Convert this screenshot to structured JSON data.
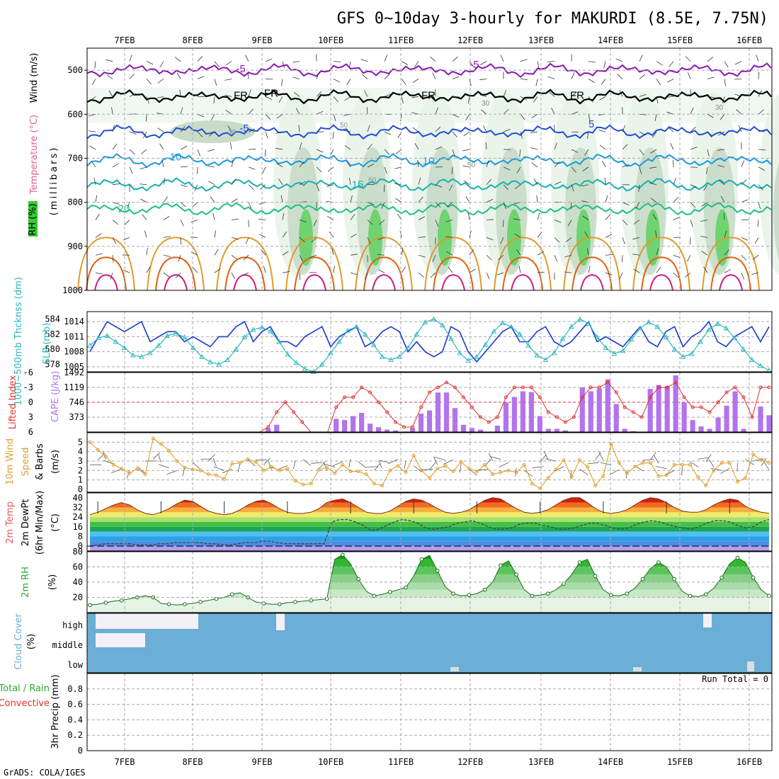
{
  "title": "GFS 0~10day 3-hourly for MAKURDI (8.5E, 7.75N)",
  "credit": "GrADS: COLA/IGES",
  "run_total": "Run Total = 0",
  "colors": {
    "purple": "#8a16b4",
    "black": "#000000",
    "blue": "#1f4fd6",
    "azure": "#1a9ae0",
    "teal": "#18b0b0",
    "green20": "#1fbf8a",
    "orange": "#e09a2a",
    "darkorange": "#e06010",
    "magenta": "#d01a80",
    "slp": "#1a3ccc",
    "thick": "#2ab8c0",
    "cape": "#b373ee",
    "li": "#e03030",
    "wind": "#e0a030",
    "rh": "#2aaa2a",
    "cloud": "#6baed6"
  },
  "chart_data": {
    "x_dates": [
      "7FEB",
      "8FEB",
      "9FEB",
      "10FEB",
      "11FEB",
      "12FEB",
      "13FEB",
      "14FEB",
      "15FEB",
      "16FEB"
    ],
    "panels": [
      {
        "id": "upper_air",
        "type": "contour",
        "ylabel_parts": [
          "RH (%)",
          "Temperature (°C)",
          "Wind (m/s)"
        ],
        "ylabel_sub": "(millibars)",
        "yticks": [
          "500",
          "600",
          "700",
          "800",
          "900",
          "1000"
        ],
        "contour_labels": [
          "-5",
          "-5",
          "FR",
          "FR",
          "FR",
          "FR",
          "-5",
          "5",
          "10",
          "10",
          "15",
          "20"
        ],
        "rh_labels": [
          "30",
          "50",
          "50",
          "50",
          "30",
          "30"
        ]
      },
      {
        "id": "slp_thickness",
        "type": "line",
        "ylabel_left": "1000~500mb Thcknss (dm)",
        "ylabel_right": "SLP (mb)",
        "yticks_left": [
          "584",
          "582",
          "580",
          "578"
        ],
        "yticks_right": [
          "1014",
          "1011",
          "1008",
          "1005"
        ],
        "slp": [
          1008,
          1011,
          1014,
          1013,
          1012,
          1013,
          1014,
          1010,
          1011,
          1012,
          1012,
          1010,
          1011,
          1010,
          1009,
          1011,
          1011,
          1013,
          1014,
          1010,
          1012,
          1013,
          1010,
          1010,
          1009,
          1011,
          1012,
          1013,
          1009,
          1011,
          1012,
          1013,
          1009,
          1010,
          1012,
          1013,
          1012,
          1008,
          1010,
          1008,
          1007,
          1008,
          1013,
          1012,
          1008,
          1006,
          1008,
          1010,
          1012,
          1013,
          1010,
          1010,
          1012,
          1013,
          1010,
          1009,
          1010,
          1012,
          1014,
          1010,
          1011,
          1010,
          1009,
          1011,
          1013,
          1010,
          1009,
          1012,
          1013,
          1009,
          1011,
          1012,
          1014,
          1010,
          1009,
          1011,
          1012,
          1013,
          1010,
          1013
        ],
        "thickness": [
          580.5,
          581.5,
          581.8,
          581.0,
          580.2,
          579.2,
          579.0,
          579.5,
          580.5,
          581.8,
          582.1,
          581.6,
          580.2,
          579.0,
          578.3,
          578.0,
          578.6,
          580.0,
          581.6,
          582.6,
          582.9,
          582.4,
          581.0,
          579.3,
          578.2,
          577.4,
          577.0,
          578.0,
          579.5,
          581.0,
          582.5,
          583.0,
          582.0,
          580.6,
          579.0,
          578.6,
          579.0,
          580.2,
          582.0,
          583.6,
          584.0,
          583.2,
          581.4,
          579.5,
          578.5,
          579.0,
          580.6,
          582.4,
          583.5,
          583.0,
          582.0,
          580.5,
          579.2,
          578.6,
          579.5,
          581.4,
          583.0,
          584.0,
          583.4,
          581.6,
          580.2,
          579.4,
          579.8,
          581.3,
          582.8,
          583.6,
          583.0,
          581.6,
          580.0,
          579.0,
          579.4,
          581.0,
          582.6,
          583.4,
          582.8,
          581.5,
          580.0,
          578.6,
          577.8,
          577.2
        ],
        "ylim_left": [
          577,
          585
        ],
        "ylim_right": [
          1004,
          1016
        ]
      },
      {
        "id": "cape_li",
        "type": "bar+line",
        "ylabel_left": "Lifted Index",
        "ylabel_right": "CAPE (J/kg)",
        "yticks_left": [
          "-6",
          "-3",
          "0",
          "3",
          "6"
        ],
        "yticks_right": [
          "1492",
          "1119",
          "746",
          "373"
        ],
        "cape": [
          0,
          0,
          0,
          0,
          0,
          0,
          0,
          0,
          0,
          0,
          0,
          0,
          0,
          0,
          0,
          0,
          0,
          0,
          0,
          0,
          0,
          90,
          180,
          0,
          0,
          0,
          0,
          0,
          0,
          330,
          300,
          400,
          480,
          210,
          120,
          60,
          40,
          0,
          100,
          460,
          540,
          990,
          990,
          600,
          180,
          100,
          60,
          0,
          160,
          740,
          880,
          1020,
          1000,
          400,
          80,
          80,
          40,
          0,
          1120,
          1020,
          1090,
          1320,
          700,
          80,
          20,
          0,
          1080,
          1180,
          1150,
          1420,
          740,
          300,
          140,
          80,
          360,
          660,
          1020,
          80,
          0,
          640,
          420
        ],
        "li": [
          6,
          6,
          6,
          6,
          6,
          6,
          6,
          6,
          6,
          6,
          6,
          6,
          6,
          6,
          6,
          6,
          6,
          6,
          6,
          6,
          6,
          5,
          2,
          0,
          2,
          4,
          6,
          6,
          6,
          1,
          -1,
          -1,
          -3,
          -2,
          0,
          2,
          4,
          5,
          5,
          1,
          -2,
          -3,
          -4,
          -3,
          -1,
          1,
          3,
          4,
          3,
          -1,
          -3,
          -3,
          -3,
          -1,
          2,
          3,
          4,
          3,
          -1,
          -3,
          -3,
          -4,
          -2,
          1,
          2,
          3,
          -1,
          -3,
          -3,
          -4,
          -1,
          1,
          1,
          2,
          0,
          -2,
          -3,
          -1,
          3,
          -3,
          -3
        ],
        "ylim_cape": [
          0,
          1492
        ],
        "ylim_li": [
          6,
          -6
        ]
      },
      {
        "id": "wind10m",
        "type": "line",
        "ylabel": "10m Wind Speed & Barbs (m/s)",
        "ylabel_parts": [
          "10m Wind",
          "Speed",
          "& Barbs",
          "(m/s)"
        ],
        "yticks": [
          "5",
          "4",
          "3",
          "2",
          "1",
          "0"
        ],
        "speed": [
          5.0,
          4.2,
          3.5,
          2.6,
          2.2,
          1.7,
          2.2,
          1.6,
          5.4,
          4.8,
          4.1,
          3.0,
          2.3,
          2.1,
          2.0,
          1.6,
          1.5,
          1.1,
          2.7,
          2.8,
          3.2,
          2.9,
          2.0,
          2.4,
          2.0,
          2.2,
          0.9,
          0.5,
          0.6,
          2.1,
          2.3,
          1.7,
          2.6,
          1.9,
          1.9,
          1.6,
          0.6,
          0.4,
          2.0,
          2.5,
          1.8,
          3.6,
          2.0,
          1.2,
          2.2,
          2.5,
          1.9,
          2.9,
          2.2,
          1.9,
          2.6,
          1.6,
          1.8,
          2.0,
          1.8,
          2.6,
          0.6,
          0.1,
          1.2,
          2.1,
          3.1,
          1.3,
          3.1,
          2.4,
          0.4,
          1.4,
          4.8,
          2.8,
          1.7,
          2.4,
          2.8,
          2.8,
          1.4,
          1.5,
          2.6,
          2.6,
          2.6,
          1.3,
          0.4,
          2.0,
          2.8,
          2.8,
          0.8,
          1.2,
          3.7,
          3.1,
          2.8
        ],
        "ylim": [
          0,
          6
        ]
      },
      {
        "id": "temp2m",
        "type": "area",
        "ylabel_parts": [
          "2m Temp",
          "2m DewPt",
          "(6hr Min/Max)",
          "(°C)"
        ],
        "yticks": [
          "40",
          "32",
          "24",
          "16",
          "8",
          "0"
        ],
        "temp": [
          26,
          28,
          31,
          34,
          36,
          34,
          30,
          27,
          26,
          28,
          31,
          35,
          38,
          37,
          33,
          29,
          27,
          26,
          27,
          30,
          34,
          37,
          38,
          35,
          31,
          28,
          27,
          27,
          28,
          31,
          36,
          38,
          39,
          36,
          32,
          28,
          27,
          27,
          29,
          33,
          37,
          39,
          38,
          35,
          31,
          28,
          27,
          28,
          30,
          34,
          38,
          40,
          39,
          35,
          31,
          28,
          27,
          28,
          30,
          34,
          38,
          40,
          40,
          36,
          31,
          28,
          27,
          28,
          30,
          34,
          38,
          40,
          39,
          36,
          32,
          29,
          28,
          28,
          30,
          34,
          37,
          39,
          38,
          33,
          30,
          28,
          27
        ],
        "dewpt": [
          0,
          1,
          2,
          2,
          2,
          2,
          1,
          1,
          1,
          2,
          2,
          3,
          3,
          3,
          3,
          2,
          2,
          1,
          1,
          2,
          3,
          3,
          4,
          4,
          3,
          2,
          2,
          2,
          2,
          2,
          2,
          20,
          22,
          22,
          20,
          17,
          13,
          14,
          17,
          20,
          22,
          21,
          19,
          15,
          14,
          15,
          16,
          19,
          20,
          21,
          19,
          16,
          14,
          14,
          15,
          18,
          19,
          19,
          17,
          16,
          14,
          14,
          15,
          17,
          19,
          19,
          17,
          15,
          14,
          15,
          18,
          20,
          21,
          20,
          18,
          16,
          15,
          14,
          16,
          19,
          21,
          21,
          20,
          17,
          15,
          16,
          20,
          22
        ],
        "ylim": [
          -4,
          44
        ]
      },
      {
        "id": "rh2m",
        "type": "area",
        "ylabel_parts": [
          "2m RH",
          "(%)"
        ],
        "yticks": [
          "80",
          "60",
          "40",
          "20"
        ],
        "rh": [
          10,
          11,
          13,
          15,
          16,
          18,
          20,
          22,
          20,
          12,
          11,
          10,
          11,
          12,
          14,
          16,
          18,
          20,
          24,
          26,
          20,
          14,
          12,
          11,
          11,
          13,
          14,
          15,
          16,
          17,
          18,
          70,
          76,
          64,
          44,
          28,
          22,
          24,
          27,
          30,
          33,
          48,
          70,
          75,
          55,
          34,
          25,
          22,
          23,
          25,
          30,
          40,
          62,
          68,
          50,
          30,
          22,
          23,
          25,
          30,
          38,
          50,
          66,
          70,
          48,
          30,
          23,
          22,
          25,
          32,
          44,
          58,
          66,
          60,
          44,
          28,
          22,
          21,
          24,
          32,
          46,
          64,
          72,
          66,
          46,
          30,
          22
        ],
        "ylim": [
          0,
          80
        ]
      },
      {
        "id": "cloud_cover",
        "type": "heatmap",
        "ylabel_parts": [
          "Cloud Cover",
          "(%)"
        ],
        "yticks": [
          "high",
          "middle",
          "low"
        ]
      },
      {
        "id": "precip",
        "type": "bar",
        "ylabel_parts": [
          "Total / Rain",
          "Convective",
          "3hr Precip (mm)"
        ],
        "yticks": [
          "0.8",
          "0.6",
          "0.4",
          "0.2",
          "0"
        ],
        "ylim": [
          0,
          1
        ],
        "values": []
      }
    ]
  }
}
